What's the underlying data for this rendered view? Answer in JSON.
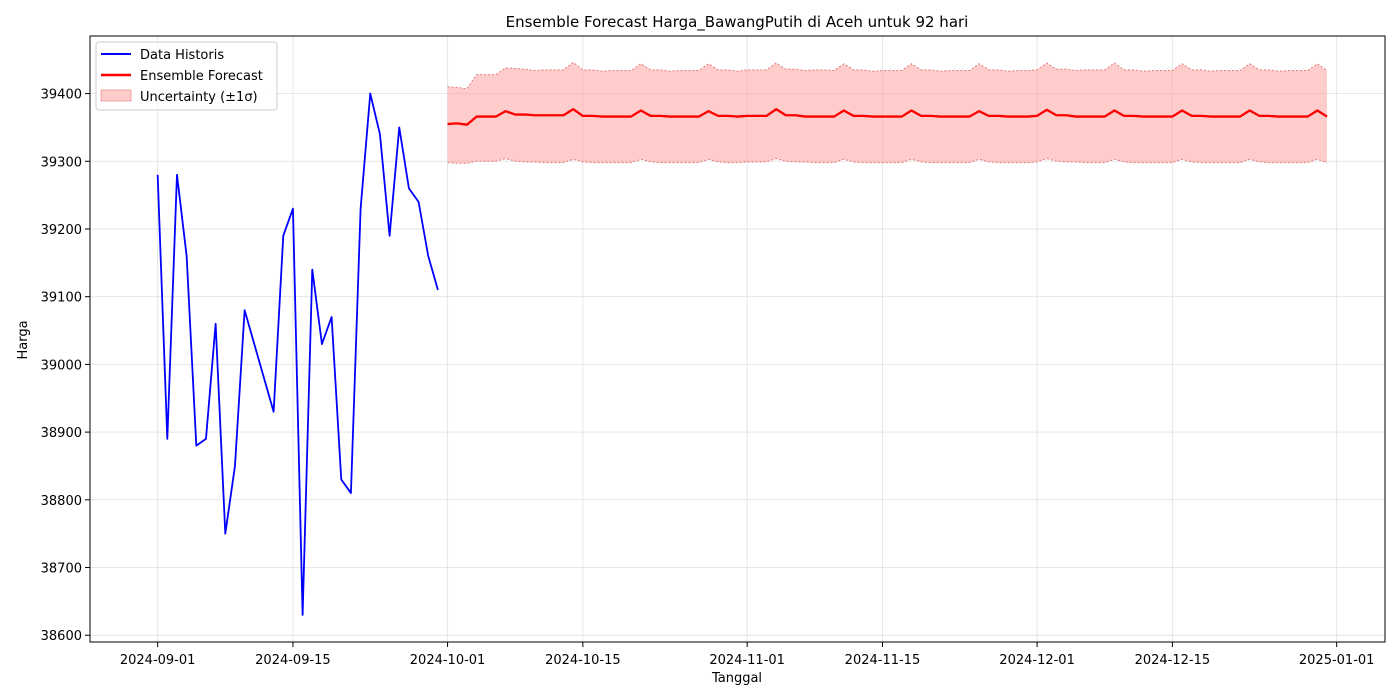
{
  "chart_data": {
    "type": "line",
    "title": "Ensemble Forecast Harga_BawangPutih di Aceh untuk 92 hari",
    "xlabel": "Tanggal",
    "ylabel": "Harga",
    "xlim": [
      "2024-08-25",
      "2025-01-06"
    ],
    "ylim": [
      38590,
      39485
    ],
    "grid": true,
    "legend_position": "top-left",
    "x_ticks": [
      "2024-09-01",
      "2024-09-15",
      "2024-10-01",
      "2024-10-15",
      "2024-11-01",
      "2024-11-15",
      "2024-12-01",
      "2024-12-15",
      "2025-01-01"
    ],
    "y_ticks": [
      38600,
      38700,
      38800,
      38900,
      39000,
      39100,
      39200,
      39300,
      39400
    ],
    "colors": {
      "historis": "#0000ff",
      "forecast": "#ff0000",
      "band_fill": "#ff9a9a",
      "band_edge": "#e07a7a"
    },
    "series": [
      {
        "name": "Data Historis",
        "x": [
          "2024-09-01",
          "2024-09-02",
          "2024-09-03",
          "2024-09-04",
          "2024-09-05",
          "2024-09-06",
          "2024-09-07",
          "2024-09-08",
          "2024-09-09",
          "2024-09-10",
          "2024-09-13",
          "2024-09-14",
          "2024-09-15",
          "2024-09-16",
          "2024-09-17",
          "2024-09-18",
          "2024-09-19",
          "2024-09-20",
          "2024-09-21",
          "2024-09-22",
          "2024-09-23",
          "2024-09-24",
          "2024-09-25",
          "2024-09-26",
          "2024-09-27",
          "2024-09-28",
          "2024-09-29",
          "2024-09-30"
        ],
        "values": [
          39280,
          38890,
          39280,
          39160,
          38880,
          38890,
          39060,
          38750,
          38850,
          39080,
          38930,
          39190,
          39230,
          38630,
          39140,
          39030,
          39070,
          38830,
          38810,
          39230,
          39400,
          39340,
          39190,
          39350,
          39260,
          39240,
          39160,
          39110
        ]
      },
      {
        "name": "Ensemble Forecast",
        "x": [
          "2024-10-01",
          "2024-10-02",
          "2024-10-03",
          "2024-10-04",
          "2024-10-05",
          "2024-10-06",
          "2024-10-07",
          "2024-10-08",
          "2024-10-09",
          "2024-10-10",
          "2024-10-11",
          "2024-10-12",
          "2024-10-13",
          "2024-10-14",
          "2024-10-15",
          "2024-10-16",
          "2024-10-17",
          "2024-10-18",
          "2024-10-19",
          "2024-10-20",
          "2024-10-21",
          "2024-10-22",
          "2024-10-23",
          "2024-10-24",
          "2024-10-25",
          "2024-10-26",
          "2024-10-27",
          "2024-10-28",
          "2024-10-29",
          "2024-10-30",
          "2024-10-31",
          "2024-11-01",
          "2024-11-02",
          "2024-11-03",
          "2024-11-04",
          "2024-11-05",
          "2024-11-06",
          "2024-11-07",
          "2024-11-08",
          "2024-11-09",
          "2024-11-10",
          "2024-11-11",
          "2024-11-12",
          "2024-11-13",
          "2024-11-14",
          "2024-11-15",
          "2024-11-16",
          "2024-11-17",
          "2024-11-18",
          "2024-11-19",
          "2024-11-20",
          "2024-11-21",
          "2024-11-22",
          "2024-11-23",
          "2024-11-24",
          "2024-11-25",
          "2024-11-26",
          "2024-11-27",
          "2024-11-28",
          "2024-11-29",
          "2024-11-30",
          "2024-12-01",
          "2024-12-02",
          "2024-12-03",
          "2024-12-04",
          "2024-12-05",
          "2024-12-06",
          "2024-12-07",
          "2024-12-08",
          "2024-12-09",
          "2024-12-10",
          "2024-12-11",
          "2024-12-12",
          "2024-12-13",
          "2024-12-14",
          "2024-12-15",
          "2024-12-16",
          "2024-12-17",
          "2024-12-18",
          "2024-12-19",
          "2024-12-20",
          "2024-12-21",
          "2024-12-22",
          "2024-12-23",
          "2024-12-24",
          "2024-12-25",
          "2024-12-26",
          "2024-12-27",
          "2024-12-28",
          "2024-12-29",
          "2024-12-30",
          "2024-12-31"
        ],
        "values": [
          39355,
          39356,
          39354,
          39366,
          39366,
          39366,
          39374,
          39369,
          39369,
          39368,
          39368,
          39368,
          39368,
          39377,
          39367,
          39367,
          39366,
          39366,
          39366,
          39366,
          39375,
          39367,
          39367,
          39366,
          39366,
          39366,
          39366,
          39374,
          39367,
          39367,
          39366,
          39367,
          39367,
          39367,
          39377,
          39368,
          39368,
          39366,
          39366,
          39366,
          39366,
          39375,
          39367,
          39367,
          39366,
          39366,
          39366,
          39366,
          39375,
          39367,
          39367,
          39366,
          39366,
          39366,
          39366,
          39374,
          39367,
          39367,
          39366,
          39366,
          39366,
          39367,
          39376,
          39368,
          39368,
          39366,
          39366,
          39366,
          39366,
          39375,
          39367,
          39367,
          39366,
          39366,
          39366,
          39366,
          39375,
          39367,
          39367,
          39366,
          39366,
          39366,
          39366,
          39375,
          39367,
          39367,
          39366,
          39366,
          39366,
          39366,
          39375,
          39366
        ],
        "lower": [
          39298,
          39297,
          39297,
          39300,
          39300,
          39300,
          39304,
          39300,
          39299,
          39299,
          39298,
          39298,
          39298,
          39303,
          39299,
          39298,
          39298,
          39298,
          39298,
          39298,
          39303,
          39299,
          39298,
          39298,
          39298,
          39298,
          39298,
          39303,
          39299,
          39298,
          39298,
          39299,
          39299,
          39299,
          39304,
          39300,
          39299,
          39299,
          39298,
          39298,
          39298,
          39303,
          39299,
          39298,
          39298,
          39298,
          39298,
          39298,
          39303,
          39299,
          39298,
          39298,
          39298,
          39298,
          39298,
          39303,
          39299,
          39298,
          39298,
          39298,
          39298,
          39299,
          39304,
          39300,
          39299,
          39299,
          39298,
          39298,
          39298,
          39303,
          39299,
          39298,
          39298,
          39298,
          39298,
          39298,
          39303,
          39299,
          39298,
          39298,
          39298,
          39298,
          39298,
          39303,
          39299,
          39298,
          39298,
          39298,
          39298,
          39298,
          39303,
          39298
        ],
        "upper": [
          39410,
          39409,
          39407,
          39428,
          39428,
          39428,
          39438,
          39437,
          39436,
          39434,
          39435,
          39435,
          39435,
          39446,
          39435,
          39435,
          39433,
          39434,
          39434,
          39434,
          39444,
          39435,
          39435,
          39433,
          39434,
          39434,
          39434,
          39444,
          39435,
          39435,
          39433,
          39435,
          39435,
          39435,
          39445,
          39436,
          39436,
          39434,
          39435,
          39435,
          39434,
          39444,
          39435,
          39435,
          39433,
          39434,
          39434,
          39434,
          39444,
          39435,
          39435,
          39433,
          39434,
          39434,
          39434,
          39444,
          39435,
          39435,
          39433,
          39434,
          39434,
          39435,
          39445,
          39436,
          39436,
          39434,
          39435,
          39435,
          39435,
          39445,
          39435,
          39435,
          39433,
          39434,
          39434,
          39434,
          39444,
          39435,
          39435,
          39433,
          39434,
          39434,
          39434,
          39444,
          39435,
          39435,
          39433,
          39434,
          39434,
          39434,
          39444,
          39434
        ]
      },
      {
        "name": "Uncertainty (±1σ)"
      }
    ]
  }
}
